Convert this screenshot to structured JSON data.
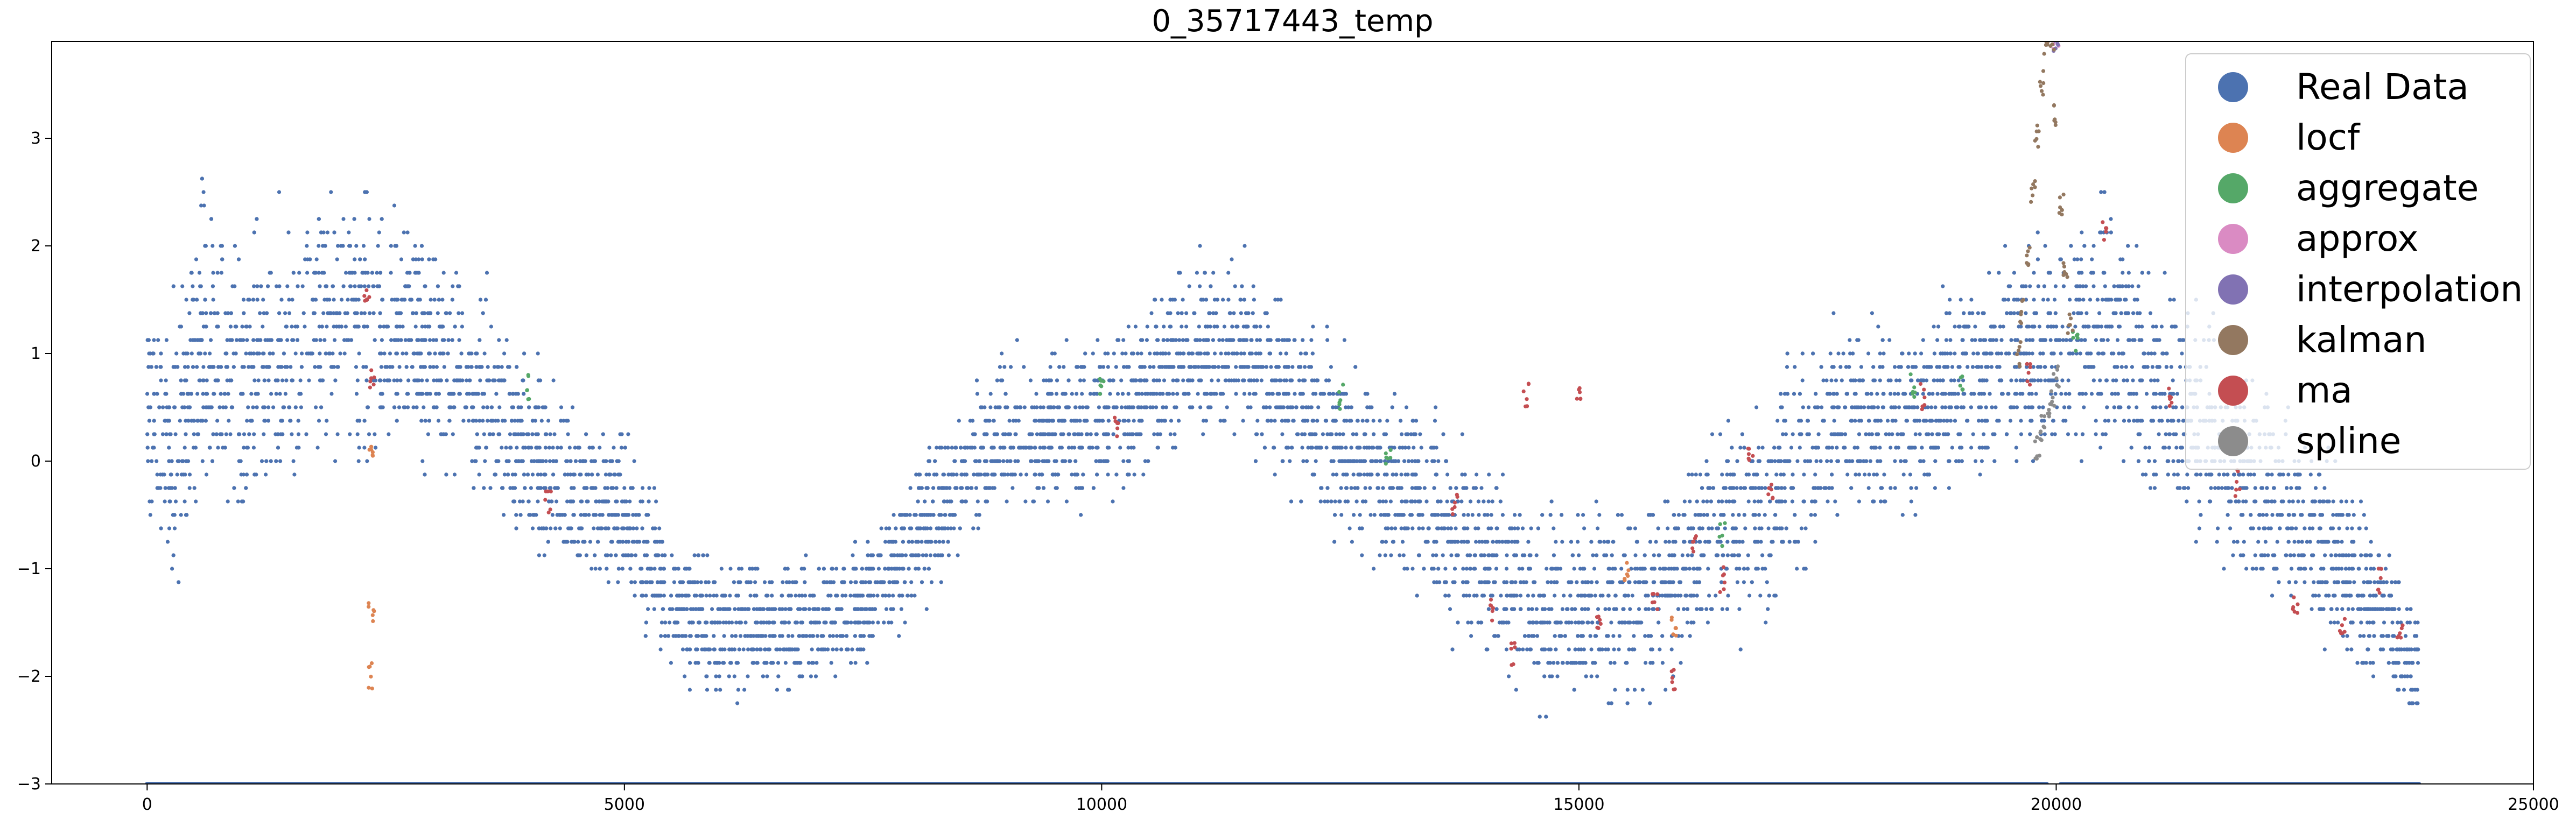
{
  "chart_data": {
    "type": "scatter",
    "title": "0_35717443_temp",
    "xlabel": "",
    "ylabel": "",
    "xlim": [
      -1000,
      25000
    ],
    "ylim": [
      -3,
      3.9
    ],
    "x_ticks": [
      0,
      5000,
      10000,
      15000,
      20000,
      25000
    ],
    "x_tick_labels": [
      "0",
      "5000",
      "10000",
      "15000",
      "20000",
      "25000"
    ],
    "y_ticks": [
      -3,
      -2,
      -1,
      0,
      1,
      2,
      3
    ],
    "y_tick_labels": [
      "−3",
      "−2",
      "−1",
      "0",
      "1",
      "2",
      "3"
    ],
    "grid": false,
    "legend_position": "top-right",
    "legend": [
      {
        "label": "Real Data",
        "color": "#4c72b0"
      },
      {
        "label": "locf",
        "color": "#dd8452"
      },
      {
        "label": "aggregate",
        "color": "#55a868"
      },
      {
        "label": "approx",
        "color": "#da8bc3"
      },
      {
        "label": "interpolation",
        "color": "#8172b3"
      },
      {
        "label": "kalman",
        "color": "#937860"
      },
      {
        "label": "ma",
        "color": "#c44e52"
      },
      {
        "label": "spline",
        "color": "#8c8c8c"
      }
    ],
    "series": [
      {
        "name": "Real Data",
        "color": "#4c72b0",
        "trend": {
          "x": [
            0,
            300,
            600,
            1000,
            1500,
            2000,
            2500,
            3000,
            3500,
            4000,
            4500,
            5000,
            5500,
            6000,
            6500,
            7000,
            7500,
            8000,
            8500,
            9000,
            9500,
            10000,
            10500,
            11000,
            11500,
            12000,
            12500,
            13000,
            13500,
            14000,
            14500,
            15000,
            15500,
            16000,
            16500,
            17000,
            17500,
            18000,
            18500,
            19000,
            19500,
            20000,
            20500,
            21000,
            21500,
            22000,
            22500,
            23000,
            23500,
            23800
          ],
          "y": [
            0.5,
            0.2,
            1.2,
            0.6,
            1.0,
            1.3,
            1.2,
            1.0,
            0.6,
            0.0,
            -0.3,
            -0.5,
            -1.3,
            -1.6,
            -1.6,
            -1.5,
            -1.3,
            -0.8,
            -0.2,
            0.3,
            0.3,
            0.4,
            0.7,
            1.1,
            1.0,
            0.5,
            0.2,
            -0.2,
            -0.5,
            -0.9,
            -1.3,
            -1.4,
            -1.3,
            -1.0,
            -0.6,
            -0.4,
            0.2,
            0.4,
            0.5,
            0.8,
            0.9,
            1.1,
            1.3,
            0.8,
            0.3,
            -0.1,
            -0.5,
            -1.0,
            -1.5,
            -2.0
          ]
        },
        "spread": {
          "x": [
            0,
            600,
            2000,
            5500,
            7000,
            11000,
            14500,
            15500,
            17000,
            19000,
            20500,
            22500,
            23800
          ],
          "y": [
            0.9,
            1.3,
            1.1,
            0.6,
            0.5,
            0.7,
            0.8,
            0.8,
            0.9,
            0.8,
            1.0,
            0.9,
            0.5
          ]
        },
        "baseline": {
          "y": -3,
          "segments": [
            [
              0,
              19900
            ],
            [
              20050,
              23800
            ]
          ]
        }
      },
      {
        "name": "locf",
        "color": "#dd8452",
        "x": [
          2350,
          2350,
          2350,
          15500,
          16000
        ],
        "y": [
          -2.0,
          -1.4,
          0.1,
          -1.0,
          -1.5
        ]
      },
      {
        "name": "aggregate",
        "color": "#55a868",
        "x": [
          4000,
          10000,
          12500,
          13000,
          16500,
          18500,
          19000,
          20200
        ],
        "y": [
          0.7,
          0.7,
          0.6,
          0.0,
          -0.7,
          0.7,
          0.7,
          1.1
        ]
      },
      {
        "name": "approx",
        "color": "#da8bc3",
        "x": [
          20000
        ],
        "y": [
          3.9
        ]
      },
      {
        "name": "interpolation",
        "color": "#8172b3",
        "x": [
          20000
        ],
        "y": [
          3.9
        ]
      },
      {
        "name": "kalman",
        "color": "#937860",
        "x": [
          19600,
          19650,
          19700,
          19750,
          19800,
          19850,
          19900,
          19950,
          20000,
          20050,
          20100,
          20150
        ],
        "y": [
          1.0,
          1.4,
          1.9,
          2.5,
          3.0,
          3.5,
          3.9,
          3.9,
          3.2,
          2.4,
          1.8,
          1.3
        ]
      },
      {
        "name": "ma",
        "color": "#c44e52",
        "x": [
          2300,
          2350,
          4200,
          10150,
          13700,
          14100,
          14300,
          14450,
          15000,
          15200,
          15800,
          16000,
          16200,
          16500,
          16800,
          17000,
          18600,
          19700,
          20500,
          21200,
          21900,
          22500,
          23000,
          23400,
          23600
        ],
        "y": [
          1.5,
          0.8,
          -0.4,
          0.3,
          -0.4,
          -1.4,
          -1.8,
          0.6,
          0.6,
          -1.5,
          -1.3,
          -2.0,
          -0.8,
          -1.1,
          0.1,
          -0.3,
          0.6,
          0.8,
          2.1,
          0.6,
          -0.2,
          -1.3,
          -1.5,
          -1.1,
          -1.6
        ]
      },
      {
        "name": "spline",
        "color": "#8c8c8c",
        "x": [
          19800,
          19850,
          19900,
          19950,
          20000
        ],
        "y": [
          0.1,
          0.3,
          0.4,
          0.6,
          0.8
        ]
      }
    ]
  }
}
